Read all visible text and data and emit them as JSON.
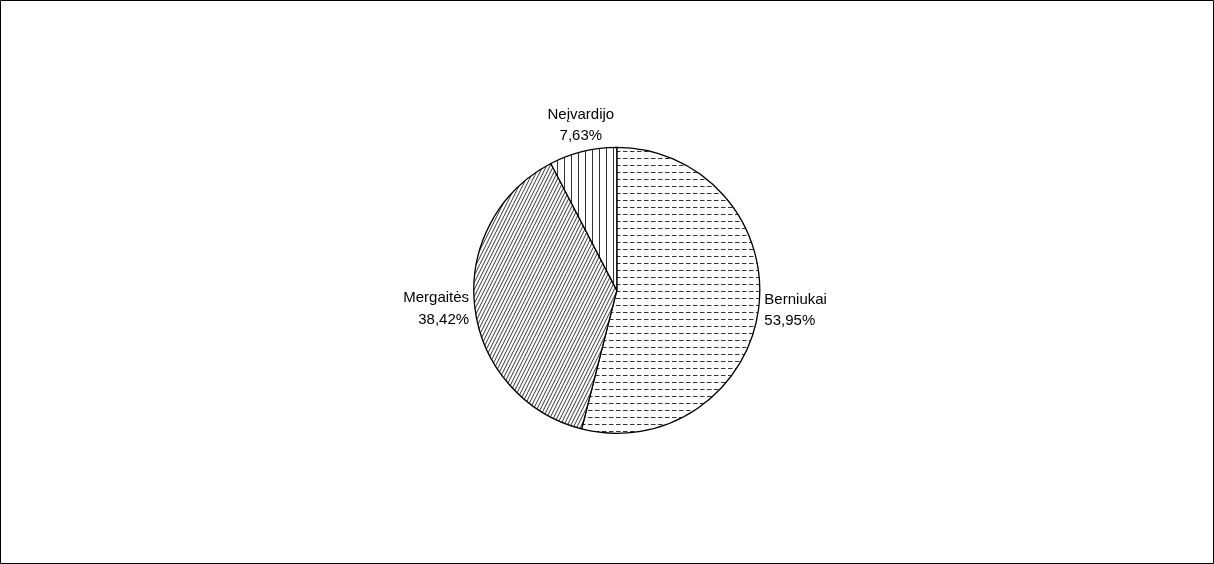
{
  "chart_data": {
    "type": "pie",
    "categories": [
      "Berniukai",
      "Mergaitės",
      "Neįvardijo"
    ],
    "values": [
      53.95,
      38.42,
      7.63
    ],
    "colors": [
      "#ffffff",
      "#ffffff",
      "#ffffff"
    ],
    "value_labels": [
      "53,95%",
      "38,42%",
      "7,63%"
    ]
  }
}
